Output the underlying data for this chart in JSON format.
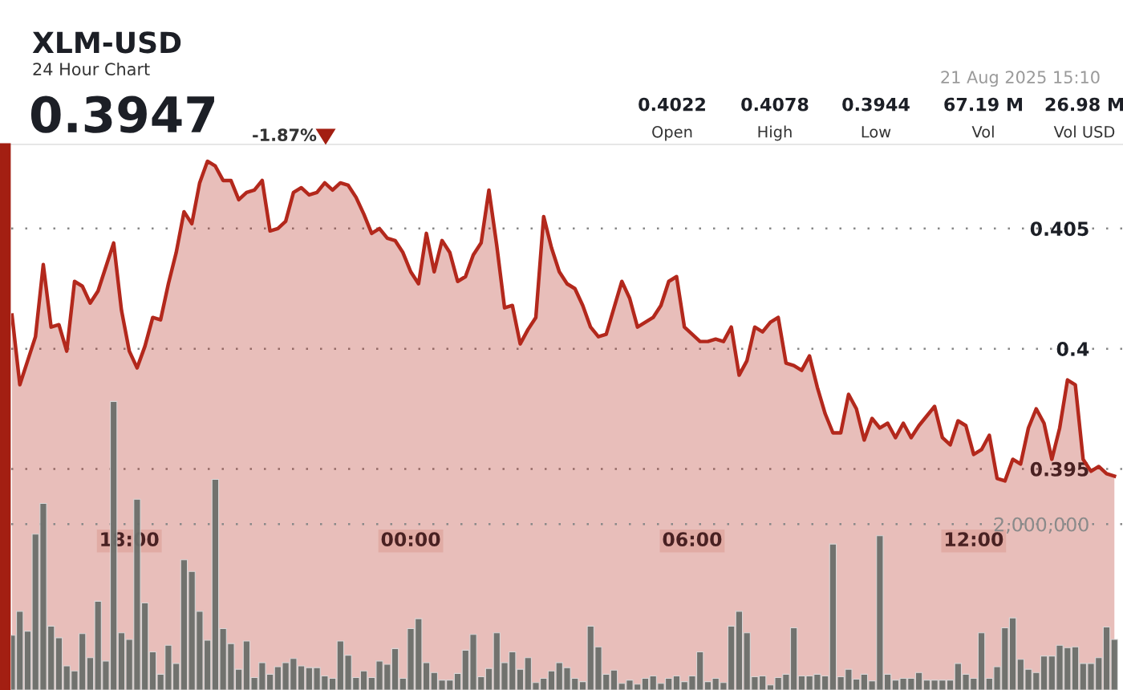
{
  "chart_data": {
    "type": "area",
    "title": "XLM-USD",
    "subtitle": "24 Hour Chart",
    "annotations": [
      "0.3947",
      "-1.87%",
      "21 Aug 2025 15:10",
      "0.4022",
      "Open",
      "0.4078",
      "High",
      "0.3944",
      "Low",
      "67.19 M",
      "Vol",
      "26.98 M",
      "Vol USD"
    ],
    "x": [
      "2025-08-20T15:30",
      "2025-08-20T15:40",
      "2025-08-20T15:50",
      "2025-08-20T16:00",
      "2025-08-20T16:10",
      "2025-08-20T16:20",
      "2025-08-20T16:30",
      "2025-08-20T16:40",
      "2025-08-20T16:50",
      "2025-08-20T17:00",
      "2025-08-20T17:10",
      "2025-08-20T17:20",
      "2025-08-20T17:30",
      "2025-08-20T17:40",
      "2025-08-20T17:50",
      "2025-08-20T18:00",
      "2025-08-20T18:10",
      "2025-08-20T18:20",
      "2025-08-20T18:30",
      "2025-08-20T18:40",
      "2025-08-20T18:50",
      "2025-08-20T19:00",
      "2025-08-20T19:10",
      "2025-08-20T19:20",
      "2025-08-20T19:30",
      "2025-08-20T19:40",
      "2025-08-20T19:50",
      "2025-08-20T20:00",
      "2025-08-20T20:10",
      "2025-08-20T20:20",
      "2025-08-20T20:30",
      "2025-08-20T20:40",
      "2025-08-20T20:50",
      "2025-08-20T21:00",
      "2025-08-20T21:10",
      "2025-08-20T21:20",
      "2025-08-20T21:30",
      "2025-08-20T21:40",
      "2025-08-20T21:50",
      "2025-08-20T22:00",
      "2025-08-20T22:10",
      "2025-08-20T22:20",
      "2025-08-20T22:30",
      "2025-08-20T22:40",
      "2025-08-20T22:50",
      "2025-08-20T23:00",
      "2025-08-20T23:10",
      "2025-08-20T23:20",
      "2025-08-20T23:30",
      "2025-08-20T23:40",
      "2025-08-20T23:50",
      "2025-08-21T00:00",
      "2025-08-21T00:10",
      "2025-08-21T00:20",
      "2025-08-21T00:30",
      "2025-08-21T00:40",
      "2025-08-21T00:50",
      "2025-08-21T01:00",
      "2025-08-21T01:10",
      "2025-08-21T01:20",
      "2025-08-21T01:30",
      "2025-08-21T01:40",
      "2025-08-21T01:50",
      "2025-08-21T02:00",
      "2025-08-21T02:10",
      "2025-08-21T02:20",
      "2025-08-21T02:30",
      "2025-08-21T02:40",
      "2025-08-21T02:50",
      "2025-08-21T03:00",
      "2025-08-21T03:10",
      "2025-08-21T03:20",
      "2025-08-21T03:30",
      "2025-08-21T03:40",
      "2025-08-21T03:50",
      "2025-08-21T04:00",
      "2025-08-21T04:10",
      "2025-08-21T04:20",
      "2025-08-21T04:30",
      "2025-08-21T04:40",
      "2025-08-21T04:50",
      "2025-08-21T05:00",
      "2025-08-21T05:10",
      "2025-08-21T05:20",
      "2025-08-21T05:30",
      "2025-08-21T05:40",
      "2025-08-21T05:50",
      "2025-08-21T06:00",
      "2025-08-21T06:10",
      "2025-08-21T06:20",
      "2025-08-21T06:30",
      "2025-08-21T06:40",
      "2025-08-21T06:50",
      "2025-08-21T07:00",
      "2025-08-21T07:10",
      "2025-08-21T07:20",
      "2025-08-21T07:30",
      "2025-08-21T07:40",
      "2025-08-21T07:50",
      "2025-08-21T08:00",
      "2025-08-21T08:10",
      "2025-08-21T08:20",
      "2025-08-21T08:30",
      "2025-08-21T08:40",
      "2025-08-21T08:50",
      "2025-08-21T09:00",
      "2025-08-21T09:10",
      "2025-08-21T09:20",
      "2025-08-21T09:30",
      "2025-08-21T09:40",
      "2025-08-21T09:50",
      "2025-08-21T10:00",
      "2025-08-21T10:10",
      "2025-08-21T10:20",
      "2025-08-21T10:30",
      "2025-08-21T10:40",
      "2025-08-21T10:50",
      "2025-08-21T11:00",
      "2025-08-21T11:10",
      "2025-08-21T11:20",
      "2025-08-21T11:30",
      "2025-08-21T11:40",
      "2025-08-21T11:50",
      "2025-08-21T12:00",
      "2025-08-21T12:10",
      "2025-08-21T12:20",
      "2025-08-21T12:30",
      "2025-08-21T12:40",
      "2025-08-21T12:50",
      "2025-08-21T13:00",
      "2025-08-21T13:10",
      "2025-08-21T13:20",
      "2025-08-21T13:30",
      "2025-08-21T13:40",
      "2025-08-21T13:50",
      "2025-08-21T14:00",
      "2025-08-21T14:10",
      "2025-08-21T14:20",
      "2025-08-21T14:30",
      "2025-08-21T14:40",
      "2025-08-21T14:50",
      "2025-08-21T15:00"
    ],
    "xlim": [
      "2025-08-20T15:29",
      "2025-08-21T15:11"
    ],
    "xticks": [
      {
        "value": "2025-08-20T18:00",
        "label": "18:00"
      },
      {
        "value": "2025-08-21T00:00",
        "label": "00:00"
      },
      {
        "value": "2025-08-21T06:00",
        "label": "06:00"
      },
      {
        "value": "2025-08-21T12:00",
        "label": "12:00"
      }
    ],
    "ylim": [
      0.3858,
      0.4085
    ],
    "yticks": [
      0.395,
      0.4,
      0.405
    ],
    "y2lim": [
      0,
      6580000
    ],
    "y2ticks": [
      {
        "value": 2000000,
        "label": "2,000,000"
      }
    ],
    "grid": "y",
    "series": [
      {
        "color": "#b3281c",
        "values": [
          0.4014,
          0.3985,
          0.3995,
          0.4005,
          0.4035,
          0.4009,
          0.401,
          0.3999,
          0.4028,
          0.4026,
          0.4019,
          0.4024,
          0.4034,
          0.4044,
          0.4016,
          0.3999,
          0.3992,
          0.4001,
          0.4013,
          0.4012,
          0.4027,
          0.404,
          0.4057,
          0.4052,
          0.4069,
          0.4078,
          0.4076,
          0.407,
          0.407,
          0.4062,
          0.4065,
          0.4066,
          0.407,
          0.4049,
          0.405,
          0.4053,
          0.4065,
          0.4067,
          0.4064,
          0.4065,
          0.4069,
          0.4066,
          0.4069,
          0.4068,
          0.4063,
          0.4056,
          0.4048,
          0.405,
          0.4046,
          0.4045,
          0.404,
          0.4032,
          0.4027,
          0.4048,
          0.4032,
          0.4045,
          0.404,
          0.4028,
          0.403,
          0.4039,
          0.4044,
          0.4066,
          0.4043,
          0.4017,
          0.4018,
          0.4002,
          0.4008,
          0.4013,
          0.4055,
          0.4042,
          0.4032,
          0.4027,
          0.4025,
          0.4018,
          0.4009,
          0.4005,
          0.4006,
          0.4017,
          0.4028,
          0.4021,
          0.4009,
          0.4011,
          0.4013,
          0.4018,
          0.4028,
          0.403,
          0.4009,
          0.4006,
          0.4003,
          0.4003,
          0.4004,
          0.4003,
          0.4009,
          0.3989,
          0.3995,
          0.4009,
          0.4007,
          0.4011,
          0.4013,
          0.3994,
          0.3993,
          0.3991,
          0.3997,
          0.3984,
          0.3973,
          0.3965,
          0.3965,
          0.3981,
          0.3975,
          0.3962,
          0.3971,
          0.3967,
          0.3969,
          0.3963,
          0.3969,
          0.3963,
          0.3968,
          0.3972,
          0.3976,
          0.3963,
          0.396,
          0.397,
          0.3968,
          0.3956,
          0.3958,
          0.3964,
          0.3946,
          0.3945,
          0.3954,
          0.3952,
          0.3967,
          0.3975,
          0.3969,
          0.3954,
          0.3967,
          0.3987,
          0.3985,
          0.3954,
          0.3949,
          0.3951,
          0.3948,
          0.3947
        ]
      },
      {
        "type": "bar",
        "axis": "y2",
        "color": "#6b6e6a",
        "values": [
          660000,
          950000,
          710000,
          1880000,
          2250000,
          770000,
          630000,
          290000,
          230000,
          680000,
          390000,
          1070000,
          350000,
          3480000,
          690000,
          610000,
          2300000,
          1050000,
          460000,
          190000,
          540000,
          320000,
          1570000,
          1430000,
          950000,
          600000,
          2540000,
          740000,
          560000,
          250000,
          590000,
          150000,
          330000,
          190000,
          280000,
          330000,
          380000,
          290000,
          270000,
          270000,
          170000,
          140000,
          590000,
          420000,
          150000,
          230000,
          150000,
          350000,
          310000,
          500000,
          140000,
          740000,
          860000,
          330000,
          210000,
          120000,
          120000,
          200000,
          480000,
          670000,
          160000,
          260000,
          690000,
          330000,
          460000,
          250000,
          390000,
          90000,
          140000,
          230000,
          330000,
          270000,
          140000,
          100000,
          770000,
          520000,
          190000,
          240000,
          80000,
          120000,
          70000,
          140000,
          170000,
          80000,
          140000,
          170000,
          100000,
          170000,
          460000,
          100000,
          140000,
          90000,
          770000,
          950000,
          690000,
          160000,
          170000,
          60000,
          150000,
          190000,
          750000,
          170000,
          170000,
          190000,
          170000,
          1760000,
          160000,
          250000,
          130000,
          190000,
          110000,
          1860000,
          190000,
          120000,
          140000,
          140000,
          210000,
          120000,
          120000,
          120000,
          120000,
          320000,
          190000,
          140000,
          690000,
          140000,
          280000,
          750000,
          870000,
          370000,
          250000,
          210000,
          410000,
          410000,
          540000,
          510000,
          520000,
          320000,
          320000,
          390000,
          760000,
          610000
        ]
      }
    ]
  }
}
